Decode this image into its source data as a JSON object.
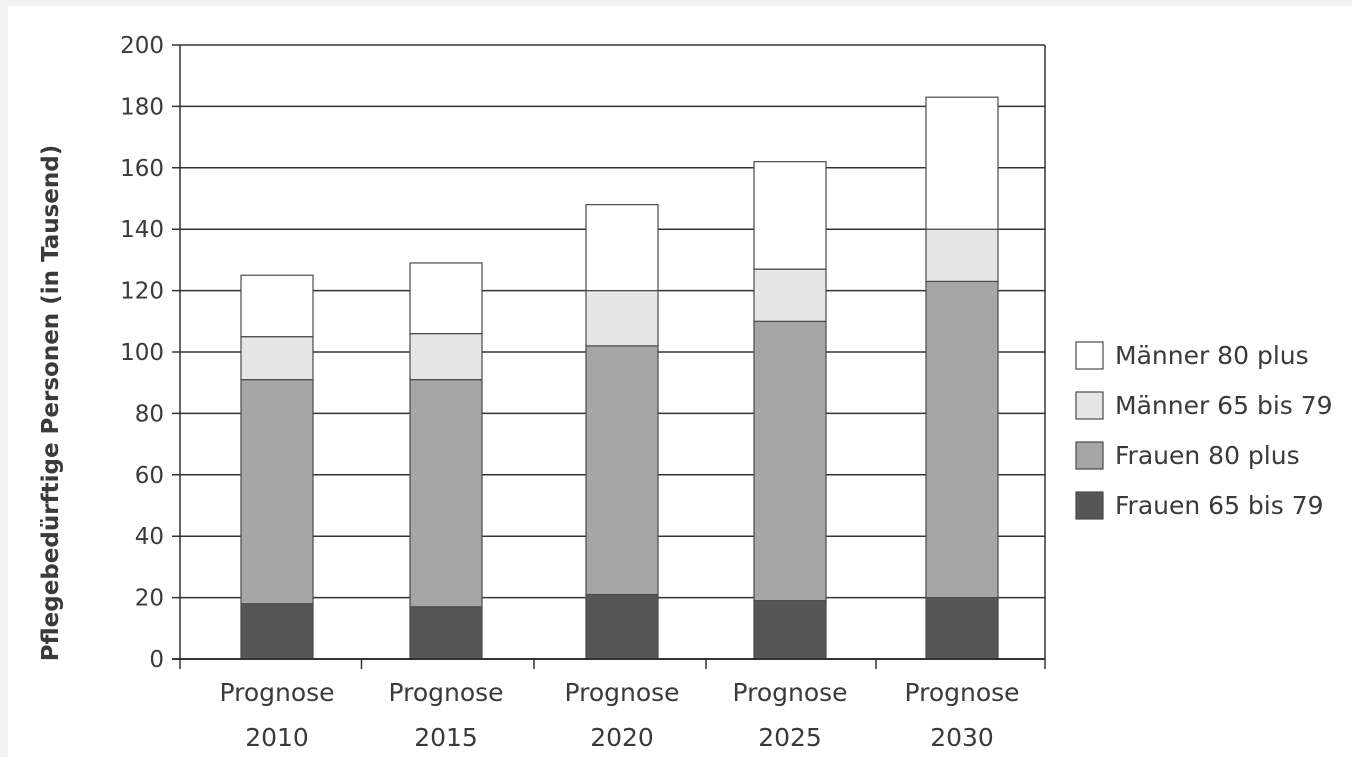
{
  "chart_data": {
    "type": "bar",
    "stacked": true,
    "title": "",
    "ylabel": "Pflegebedürftige Personen (in Tausend)",
    "xlabel": "",
    "ylim": [
      0,
      200
    ],
    "yticks": [
      0,
      20,
      40,
      60,
      80,
      100,
      120,
      140,
      160,
      180,
      200
    ],
    "grid": true,
    "legend_position": "right",
    "categories": [
      [
        "Prognose",
        "2010"
      ],
      [
        "Prognose",
        "2015"
      ],
      [
        "Prognose",
        "2020"
      ],
      [
        "Prognose",
        "2025"
      ],
      [
        "Prognose",
        "2030"
      ]
    ],
    "series": [
      {
        "name": "Frauen 65 bis 79",
        "color": "#565656",
        "values": [
          18,
          17,
          21,
          19,
          20
        ]
      },
      {
        "name": "Frauen 80 plus",
        "color": "#a6a6a6",
        "values": [
          73,
          74,
          81,
          91,
          103
        ]
      },
      {
        "name": "Männer 65 bis 79",
        "color": "#e6e6e6",
        "values": [
          14,
          15,
          18,
          17,
          17
        ]
      },
      {
        "name": "Männer 80 plus",
        "color": "#ffffff",
        "values": [
          20,
          23,
          28,
          35,
          43
        ]
      }
    ],
    "legend_order": [
      "Männer 80 plus",
      "Männer 65 bis 79",
      "Frauen 80 plus",
      "Frauen 65 bis 79"
    ]
  }
}
